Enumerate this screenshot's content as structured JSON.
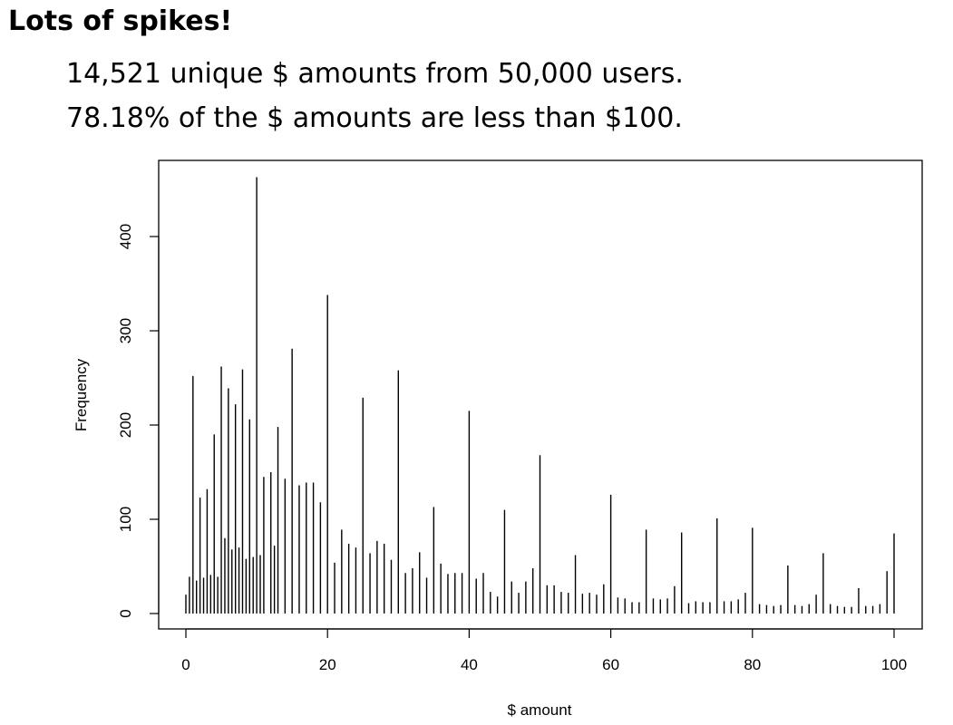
{
  "slide": {
    "title": "Lots of spikes!",
    "lines": [
      "14,521 unique $ amounts from 50,000 users.",
      "78.18% of the $ amounts are less than $100."
    ]
  },
  "chart_data": {
    "type": "bar",
    "xlabel": "$ amount",
    "ylabel": "Frequency",
    "xlim": [
      0,
      100
    ],
    "ylim": [
      0,
      450
    ],
    "xticks": [
      0,
      20,
      40,
      60,
      80,
      100
    ],
    "yticks": [
      0,
      100,
      200,
      300,
      400
    ],
    "grid": false,
    "legend": "none",
    "spikes": [
      {
        "x": 0,
        "y": 20
      },
      {
        "x": 0.5,
        "y": 39
      },
      {
        "x": 1,
        "y": 252
      },
      {
        "x": 1.5,
        "y": 35
      },
      {
        "x": 2,
        "y": 123
      },
      {
        "x": 2.5,
        "y": 38
      },
      {
        "x": 3,
        "y": 132
      },
      {
        "x": 3.5,
        "y": 41
      },
      {
        "x": 4,
        "y": 190
      },
      {
        "x": 4.5,
        "y": 39
      },
      {
        "x": 5,
        "y": 262
      },
      {
        "x": 5.5,
        "y": 80
      },
      {
        "x": 6,
        "y": 239
      },
      {
        "x": 6.5,
        "y": 68
      },
      {
        "x": 7,
        "y": 222
      },
      {
        "x": 7.5,
        "y": 70
      },
      {
        "x": 8,
        "y": 259
      },
      {
        "x": 8.5,
        "y": 58
      },
      {
        "x": 9,
        "y": 206
      },
      {
        "x": 9.5,
        "y": 60
      },
      {
        "x": 10,
        "y": 463
      },
      {
        "x": 10.5,
        "y": 62
      },
      {
        "x": 11,
        "y": 145
      },
      {
        "x": 12,
        "y": 150
      },
      {
        "x": 12.5,
        "y": 72
      },
      {
        "x": 13,
        "y": 198
      },
      {
        "x": 14,
        "y": 143
      },
      {
        "x": 15,
        "y": 281
      },
      {
        "x": 16,
        "y": 136
      },
      {
        "x": 17,
        "y": 139
      },
      {
        "x": 18,
        "y": 139
      },
      {
        "x": 19,
        "y": 118
      },
      {
        "x": 20,
        "y": 338
      },
      {
        "x": 21,
        "y": 54
      },
      {
        "x": 22,
        "y": 89
      },
      {
        "x": 23,
        "y": 74
      },
      {
        "x": 24,
        "y": 70
      },
      {
        "x": 25,
        "y": 229
      },
      {
        "x": 26,
        "y": 64
      },
      {
        "x": 27,
        "y": 77
      },
      {
        "x": 28,
        "y": 74
      },
      {
        "x": 29,
        "y": 57
      },
      {
        "x": 30,
        "y": 258
      },
      {
        "x": 31,
        "y": 43
      },
      {
        "x": 32,
        "y": 48
      },
      {
        "x": 33,
        "y": 65
      },
      {
        "x": 34,
        "y": 38
      },
      {
        "x": 35,
        "y": 113
      },
      {
        "x": 36,
        "y": 53
      },
      {
        "x": 37,
        "y": 42
      },
      {
        "x": 38,
        "y": 43
      },
      {
        "x": 39,
        "y": 43
      },
      {
        "x": 40,
        "y": 215
      },
      {
        "x": 41,
        "y": 37
      },
      {
        "x": 42,
        "y": 43
      },
      {
        "x": 43,
        "y": 23
      },
      {
        "x": 44,
        "y": 18
      },
      {
        "x": 45,
        "y": 110
      },
      {
        "x": 46,
        "y": 34
      },
      {
        "x": 47,
        "y": 22
      },
      {
        "x": 48,
        "y": 34
      },
      {
        "x": 49,
        "y": 48
      },
      {
        "x": 50,
        "y": 168
      },
      {
        "x": 51,
        "y": 30
      },
      {
        "x": 52,
        "y": 30
      },
      {
        "x": 53,
        "y": 23
      },
      {
        "x": 54,
        "y": 22
      },
      {
        "x": 55,
        "y": 62
      },
      {
        "x": 56,
        "y": 21
      },
      {
        "x": 57,
        "y": 22
      },
      {
        "x": 58,
        "y": 20
      },
      {
        "x": 59,
        "y": 31
      },
      {
        "x": 60,
        "y": 126
      },
      {
        "x": 61,
        "y": 17
      },
      {
        "x": 62,
        "y": 16
      },
      {
        "x": 63,
        "y": 12
      },
      {
        "x": 64,
        "y": 12
      },
      {
        "x": 65,
        "y": 89
      },
      {
        "x": 66,
        "y": 16
      },
      {
        "x": 67,
        "y": 15
      },
      {
        "x": 68,
        "y": 16
      },
      {
        "x": 69,
        "y": 29
      },
      {
        "x": 70,
        "y": 86
      },
      {
        "x": 71,
        "y": 11
      },
      {
        "x": 72,
        "y": 13
      },
      {
        "x": 73,
        "y": 12
      },
      {
        "x": 74,
        "y": 12
      },
      {
        "x": 75,
        "y": 101
      },
      {
        "x": 76,
        "y": 13
      },
      {
        "x": 77,
        "y": 13
      },
      {
        "x": 78,
        "y": 15
      },
      {
        "x": 79,
        "y": 22
      },
      {
        "x": 80,
        "y": 91
      },
      {
        "x": 81,
        "y": 10
      },
      {
        "x": 82,
        "y": 9
      },
      {
        "x": 83,
        "y": 8
      },
      {
        "x": 84,
        "y": 9
      },
      {
        "x": 85,
        "y": 51
      },
      {
        "x": 86,
        "y": 9
      },
      {
        "x": 87,
        "y": 8
      },
      {
        "x": 88,
        "y": 10
      },
      {
        "x": 89,
        "y": 20
      },
      {
        "x": 90,
        "y": 64
      },
      {
        "x": 91,
        "y": 10
      },
      {
        "x": 92,
        "y": 8
      },
      {
        "x": 93,
        "y": 7
      },
      {
        "x": 94,
        "y": 7
      },
      {
        "x": 95,
        "y": 27
      },
      {
        "x": 96,
        "y": 8
      },
      {
        "x": 97,
        "y": 8
      },
      {
        "x": 98,
        "y": 10
      },
      {
        "x": 99,
        "y": 45
      },
      {
        "x": 100,
        "y": 85
      }
    ]
  }
}
